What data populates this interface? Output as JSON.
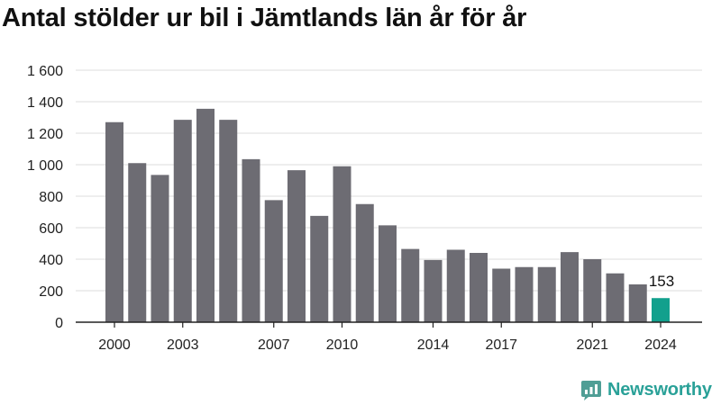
{
  "title": "Antal stölder ur bil i Jämtlands län år för år",
  "brand": {
    "name": "Newsworthy",
    "icon": "newsworthy-logo-icon"
  },
  "colors": {
    "bar": "#6d6c73",
    "highlight": "#12a08d",
    "grid": "#dddddd",
    "axis": "#222222",
    "brand": "#2aa198"
  },
  "chart_data": {
    "type": "bar",
    "title": "Antal stölder ur bil i Jämtlands län år för år",
    "xlabel": "",
    "ylabel": "",
    "categories": [
      2000,
      2001,
      2002,
      2003,
      2004,
      2005,
      2006,
      2007,
      2008,
      2009,
      2010,
      2011,
      2012,
      2013,
      2014,
      2015,
      2016,
      2017,
      2018,
      2019,
      2020,
      2021,
      2022,
      2023,
      2024
    ],
    "values": [
      1270,
      1010,
      935,
      1285,
      1355,
      1285,
      1035,
      775,
      965,
      675,
      990,
      750,
      615,
      465,
      395,
      460,
      440,
      340,
      350,
      350,
      445,
      400,
      310,
      240,
      153
    ],
    "highlight_index": 24,
    "highlight_label": "153",
    "x_ticks": [
      2000,
      2003,
      2007,
      2010,
      2014,
      2017,
      2021,
      2024
    ],
    "x_tick_labels": [
      "2000",
      "2003",
      "2007",
      "2010",
      "2014",
      "2017",
      "2021",
      "2024"
    ],
    "y_ticks": [
      0,
      200,
      400,
      600,
      800,
      1000,
      1200,
      1400,
      1600
    ],
    "y_tick_labels": [
      "0",
      "200",
      "400",
      "600",
      "800",
      "1 000",
      "1 200",
      "1 400",
      "1 600"
    ],
    "ylim": [
      0,
      1600
    ],
    "grid": true
  }
}
